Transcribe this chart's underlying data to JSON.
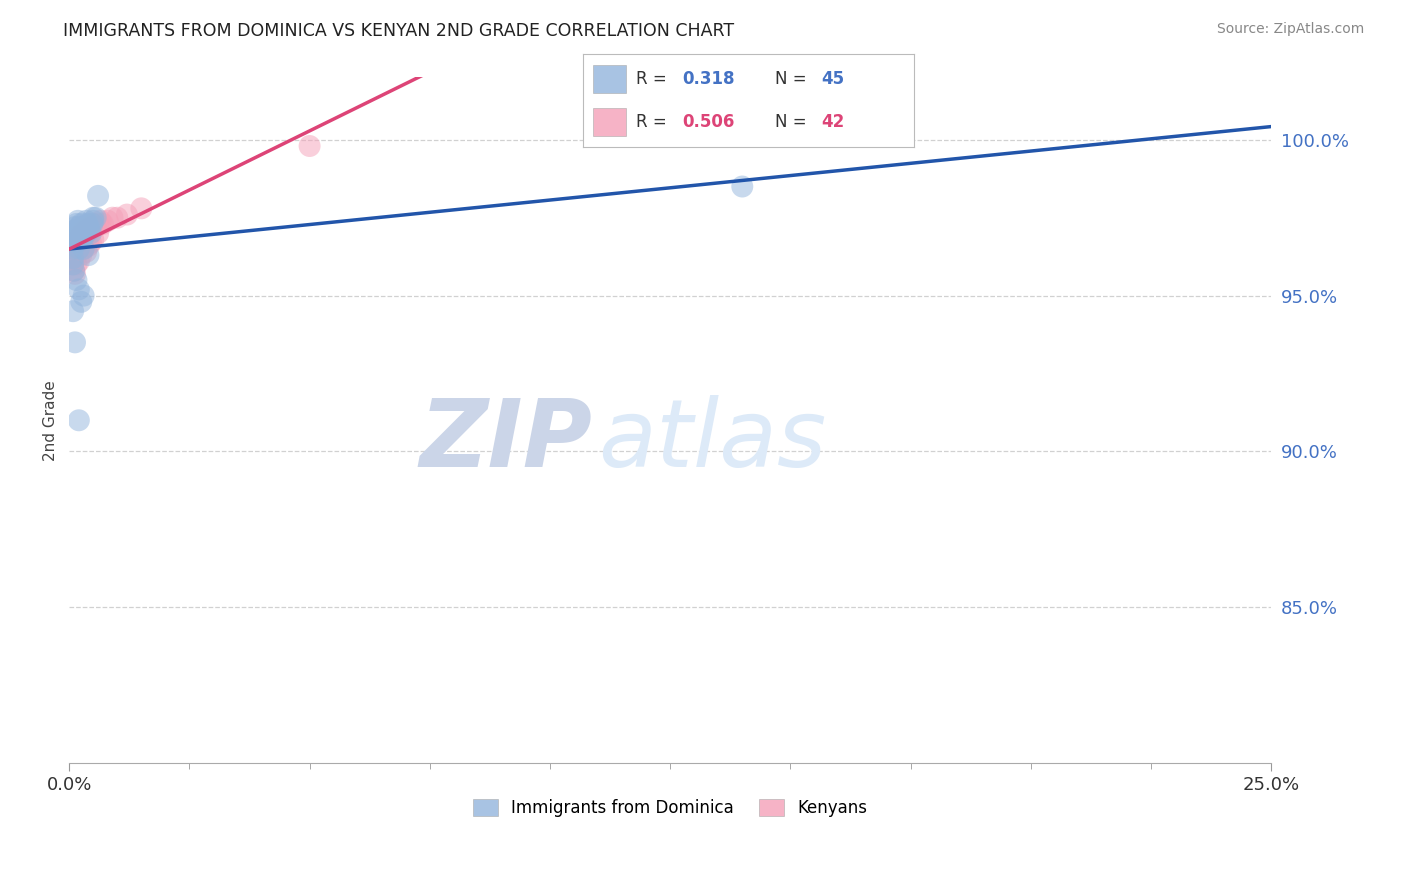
{
  "title": "IMMIGRANTS FROM DOMINICA VS KENYAN 2ND GRADE CORRELATION CHART",
  "source": "Source: ZipAtlas.com",
  "ylabel": "2nd Grade",
  "series1_label": "Immigrants from Dominica",
  "series2_label": "Kenyans",
  "series1_color": "#92B4DC",
  "series2_color": "#F4A0B8",
  "series1_line_color": "#2255AA",
  "series2_line_color": "#DD4477",
  "series1_R": 0.318,
  "series1_N": 45,
  "series2_R": 0.506,
  "series2_N": 42,
  "N_color1": "#4472C4",
  "N_color2": "#DD4477",
  "watermark_ZIP": "ZIP",
  "watermark_atlas": "atlas",
  "x_min": 0.0,
  "x_max": 25.0,
  "y_min": 80.0,
  "y_max": 102.0,
  "yticks": [
    85.0,
    90.0,
    95.0,
    100.0
  ],
  "blue_x": [
    0.05,
    0.08,
    0.08,
    0.1,
    0.1,
    0.1,
    0.12,
    0.12,
    0.13,
    0.15,
    0.15,
    0.16,
    0.18,
    0.2,
    0.2,
    0.22,
    0.25,
    0.25,
    0.28,
    0.3,
    0.3,
    0.32,
    0.35,
    0.35,
    0.38,
    0.4,
    0.42,
    0.45,
    0.48,
    0.5,
    0.55,
    0.6,
    0.08,
    0.1,
    0.15,
    0.2,
    0.25,
    0.3,
    0.08,
    0.12,
    0.2,
    0.3,
    14.0,
    0.5,
    0.4
  ],
  "blue_y": [
    96.8,
    96.5,
    96.2,
    97.0,
    96.9,
    96.7,
    97.2,
    96.9,
    97.1,
    97.3,
    96.7,
    97.0,
    97.4,
    97.2,
    96.5,
    97.0,
    97.3,
    96.8,
    97.1,
    97.2,
    96.9,
    97.0,
    97.4,
    97.0,
    97.3,
    97.2,
    97.1,
    97.0,
    97.3,
    97.4,
    97.5,
    98.2,
    96.0,
    95.8,
    95.5,
    95.2,
    94.8,
    95.0,
    94.5,
    93.5,
    91.0,
    96.5,
    98.5,
    97.5,
    96.3
  ],
  "pink_x": [
    0.05,
    0.08,
    0.1,
    0.12,
    0.15,
    0.15,
    0.18,
    0.2,
    0.2,
    0.22,
    0.25,
    0.28,
    0.3,
    0.32,
    0.35,
    0.38,
    0.4,
    0.42,
    0.45,
    0.48,
    0.5,
    0.55,
    0.6,
    0.65,
    0.7,
    0.8,
    0.9,
    1.0,
    1.2,
    1.5,
    0.1,
    0.15,
    0.2,
    0.25,
    0.3,
    0.35,
    0.4,
    0.45,
    0.5,
    0.6,
    5.0,
    0.12
  ],
  "pink_y": [
    96.3,
    96.0,
    96.5,
    96.2,
    96.7,
    96.4,
    96.8,
    96.5,
    96.9,
    96.6,
    97.0,
    96.8,
    97.1,
    96.9,
    97.0,
    97.1,
    97.2,
    97.0,
    97.1,
    97.2,
    97.3,
    97.2,
    97.3,
    97.4,
    97.3,
    97.4,
    97.5,
    97.5,
    97.6,
    97.8,
    95.8,
    96.0,
    96.1,
    96.3,
    96.5,
    96.4,
    96.6,
    96.7,
    96.8,
    97.0,
    99.8,
    95.7
  ]
}
